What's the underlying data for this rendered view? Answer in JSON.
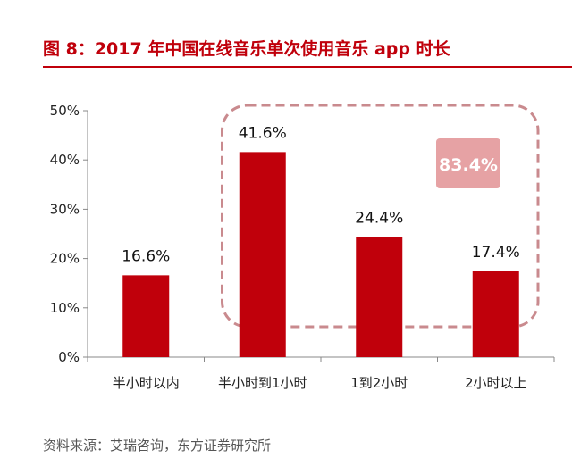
{
  "figure": {
    "title": "图 8：2017 年中国在线音乐单次使用音乐 app 时长",
    "source": "资料来源：艾瑞咨询，东方证券研究所"
  },
  "colors": {
    "bar": "#c0000b",
    "title": "#c0000b",
    "highlight_border": "#c98a8e",
    "highlight_badge_bg": "#e6a2a4",
    "highlight_badge_text": "#ffffff"
  },
  "chart_data": {
    "type": "bar",
    "title": "",
    "xlabel": "",
    "ylabel": "",
    "categories": [
      "半小时以内",
      "半小时到1小时",
      "1到2小时",
      "2小时以上"
    ],
    "values": [
      16.6,
      41.6,
      24.4,
      17.4
    ],
    "data_labels": [
      "16.6%",
      "41.6%",
      "24.4%",
      "17.4%"
    ],
    "ylim": [
      0,
      50
    ],
    "yticks": [
      0,
      10,
      20,
      30,
      40,
      50
    ],
    "ytick_labels": [
      "0%",
      "10%",
      "20%",
      "30%",
      "40%",
      "50%"
    ],
    "grid": false,
    "annotation": {
      "text": "83.4%",
      "covers_categories": [
        "半小时到1小时",
        "1到2小时",
        "2小时以上"
      ]
    }
  }
}
